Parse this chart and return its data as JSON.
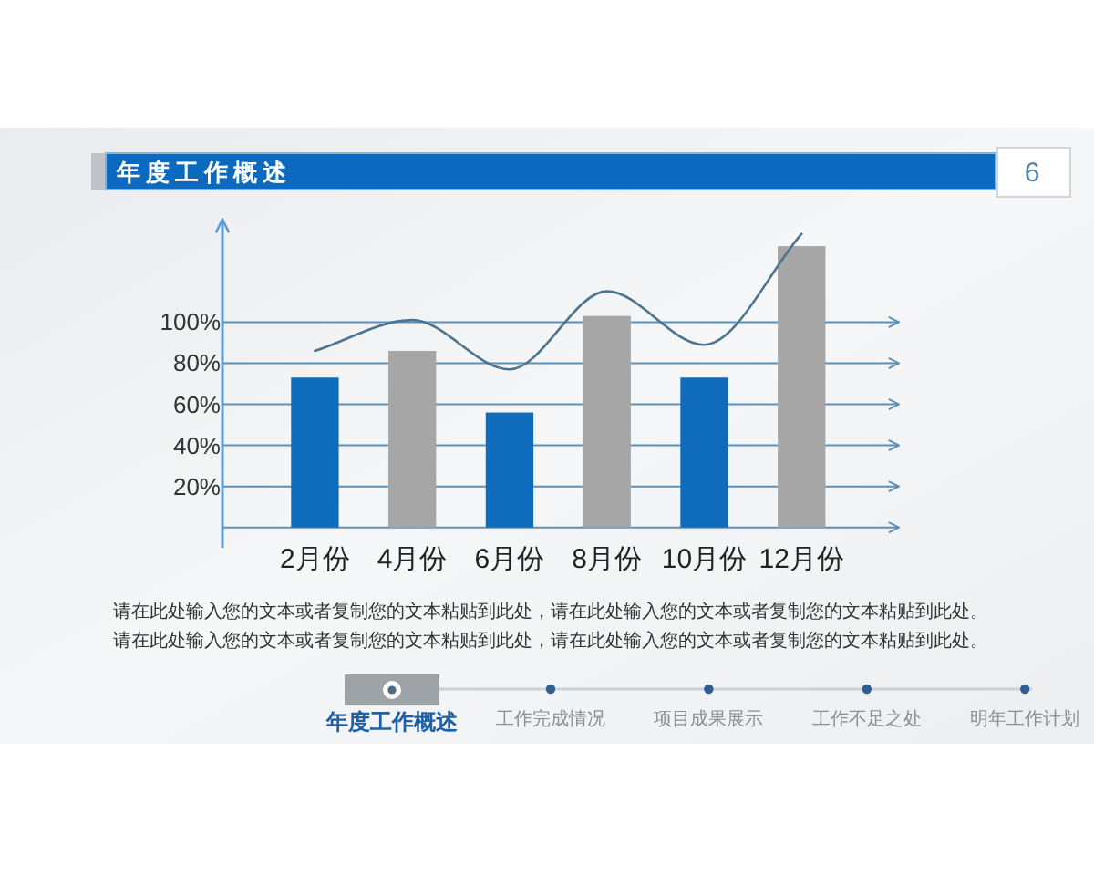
{
  "chart_data": {
    "type": "bar",
    "title": "年度工作概述",
    "categories": [
      "2月份",
      "4月份",
      "6月份",
      "8月份",
      "10月份",
      "12月份"
    ],
    "series": [
      {
        "colors": [
          "#0f6cbd",
          "#a6a6a6",
          "#0f6cbd",
          "#a6a6a6",
          "#0f6cbd",
          "#a6a6a6"
        ],
        "values": [
          73,
          86,
          56,
          103,
          73,
          137
        ]
      },
      {
        "type": "line",
        "color": "#4b7491",
        "values": [
          86,
          101,
          77,
          115,
          89,
          143
        ]
      }
    ],
    "ylim": [
      -10,
      150
    ],
    "yticks": [
      {
        "value": 0,
        "label": null
      },
      {
        "value": 20,
        "label": "20%"
      },
      {
        "value": 40,
        "label": "40%"
      },
      {
        "value": 60,
        "label": "60%"
      },
      {
        "value": 80,
        "label": "80%"
      },
      {
        "value": 100,
        "label": "100%"
      }
    ],
    "grid": "y",
    "line_style": "solid",
    "annotations": [
      "6",
      "请在此处输入您的文本或者复制您的文本粘贴到此处，请在此处输入您的文本或者复制您的文本粘贴到此处。",
      "请在此处输入您的文本或者复制您的文本粘贴到此处，请在此处输入您的文本或者复制您的文本粘贴到此处。",
      "年度工作概述",
      "工作完成情况",
      "项目成果展示",
      "工作不足之处",
      "明年工作计划"
    ]
  }
}
